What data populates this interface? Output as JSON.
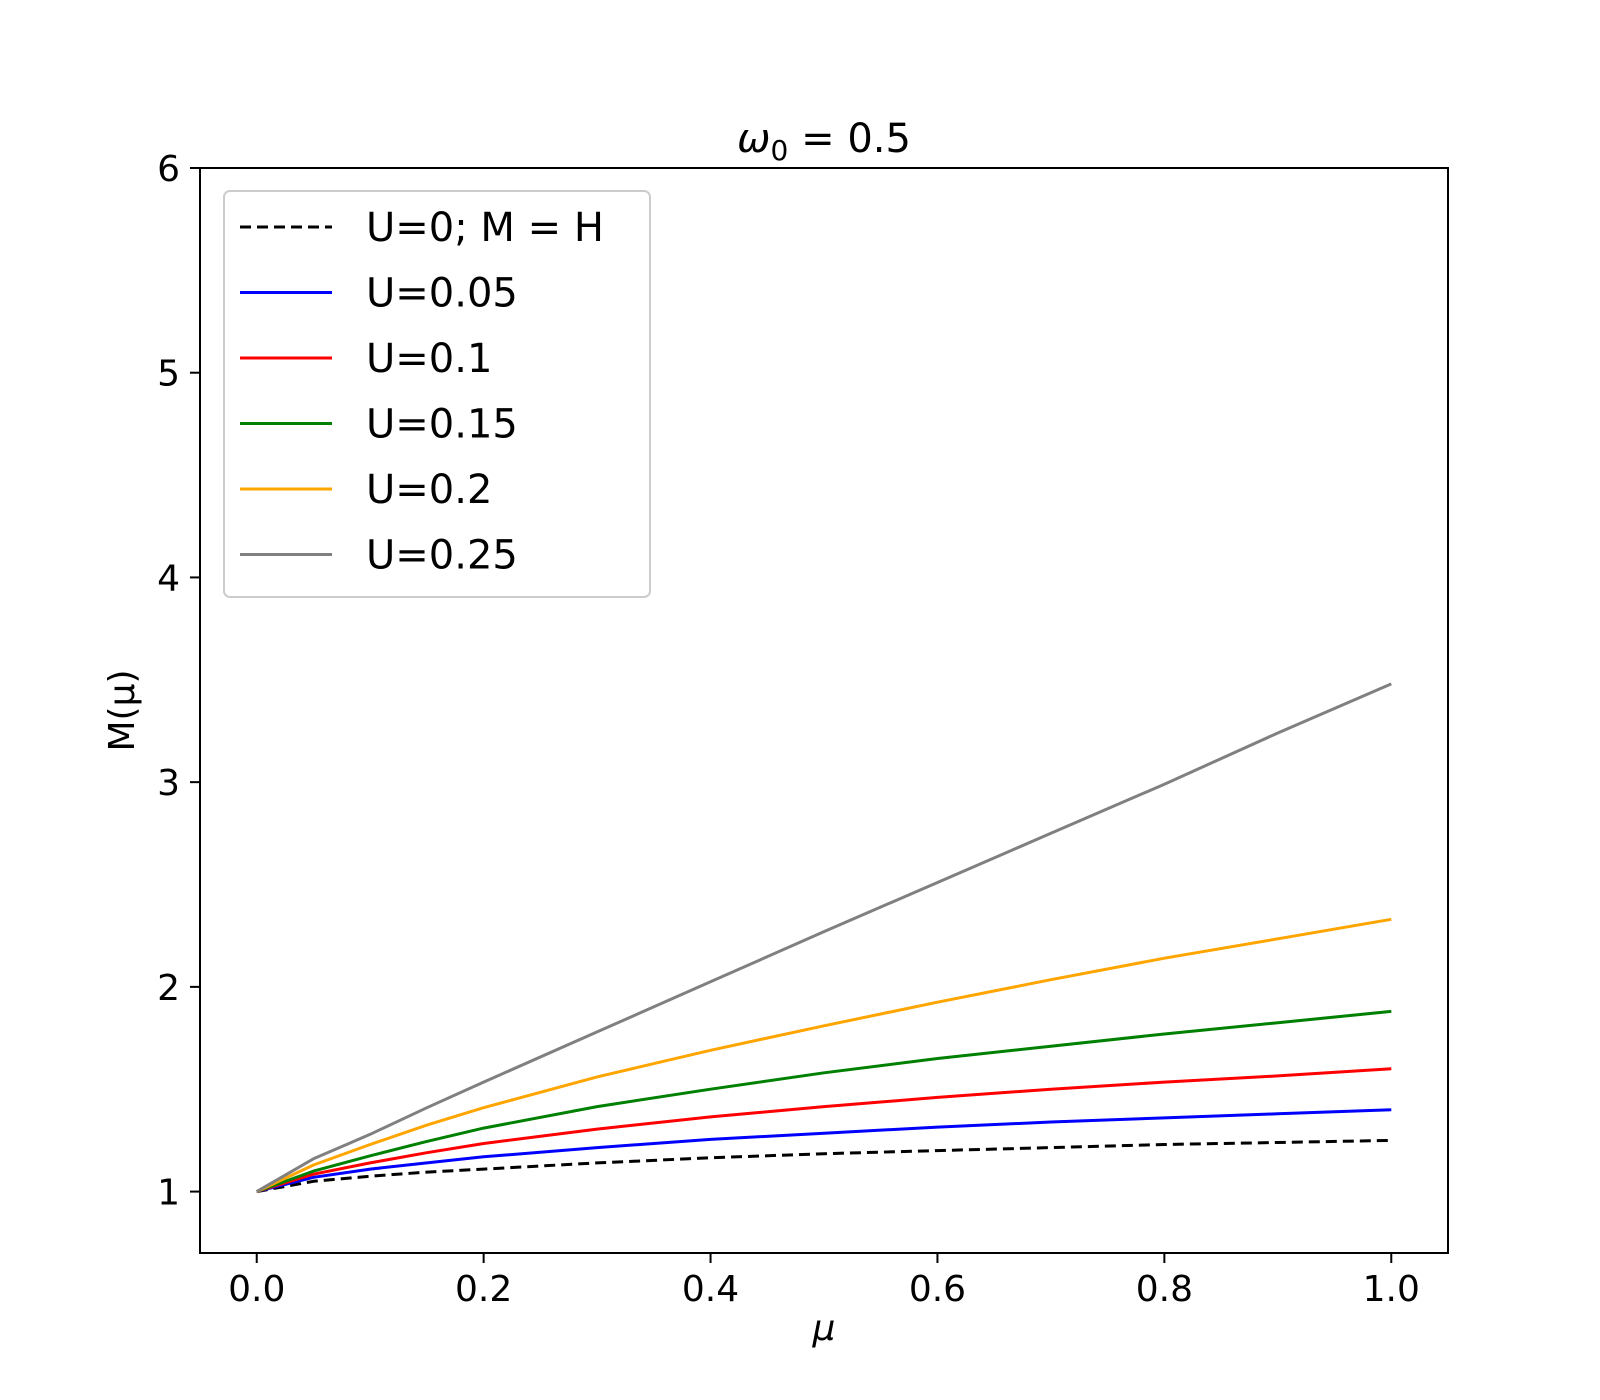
{
  "chart_data": {
    "type": "line",
    "title_symbol": "ω",
    "title_subscript": "0",
    "title_rest": " = 0.5",
    "xlabel": "μ",
    "ylabel": "M(μ)",
    "xlim": [
      -0.05,
      1.05
    ],
    "ylim": [
      0.7,
      6.0
    ],
    "xticks": [
      0.0,
      0.2,
      0.4,
      0.6,
      0.8,
      1.0
    ],
    "xtick_labels": [
      "0.0",
      "0.2",
      "0.4",
      "0.6",
      "0.8",
      "1.0"
    ],
    "yticks": [
      1,
      2,
      3,
      4,
      5,
      6
    ],
    "ytick_labels": [
      "1",
      "2",
      "3",
      "4",
      "5",
      "6"
    ],
    "grid": false,
    "legend_position": "upper-left",
    "x": [
      0.0,
      0.05,
      0.1,
      0.15,
      0.2,
      0.3,
      0.4,
      0.5,
      0.6,
      0.7,
      0.8,
      0.9,
      1.0
    ],
    "series": [
      {
        "name": "U=0; M = H",
        "color": "#000000",
        "dashed": true,
        "values": [
          1.0,
          1.05,
          1.075,
          1.095,
          1.11,
          1.14,
          1.165,
          1.185,
          1.2,
          1.215,
          1.23,
          1.24,
          1.25
        ]
      },
      {
        "name": "U=0.05",
        "color": "#0000ff",
        "dashed": false,
        "values": [
          1.0,
          1.07,
          1.11,
          1.14,
          1.17,
          1.215,
          1.255,
          1.285,
          1.315,
          1.34,
          1.36,
          1.38,
          1.4
        ]
      },
      {
        "name": "U=0.1",
        "color": "#ff0000",
        "dashed": false,
        "values": [
          1.0,
          1.085,
          1.14,
          1.19,
          1.235,
          1.305,
          1.365,
          1.415,
          1.46,
          1.5,
          1.535,
          1.565,
          1.6
        ]
      },
      {
        "name": "U=0.15",
        "color": "#008000",
        "dashed": false,
        "values": [
          1.0,
          1.1,
          1.175,
          1.245,
          1.31,
          1.415,
          1.5,
          1.58,
          1.65,
          1.71,
          1.77,
          1.825,
          1.88
        ]
      },
      {
        "name": "U=0.2",
        "color": "#ffa500",
        "dashed": false,
        "values": [
          1.0,
          1.13,
          1.23,
          1.325,
          1.41,
          1.56,
          1.69,
          1.81,
          1.925,
          2.035,
          2.14,
          2.235,
          2.33
        ]
      },
      {
        "name": "U=0.25",
        "color": "#808080",
        "dashed": false,
        "values": [
          1.0,
          1.16,
          1.28,
          1.41,
          1.535,
          1.78,
          2.025,
          2.27,
          2.51,
          2.75,
          2.99,
          3.24,
          3.48
        ]
      }
    ]
  }
}
